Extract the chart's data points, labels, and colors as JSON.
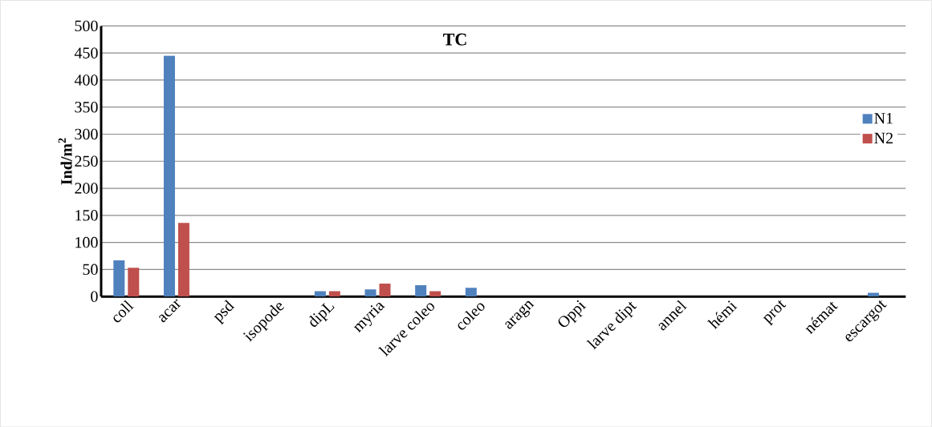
{
  "chart_data": {
    "type": "bar",
    "title": "TC",
    "ylabel": "Ind/m$^{2}$",
    "categories": [
      "coll",
      "acar",
      "psd",
      "isopode",
      "dipL",
      "myria",
      "larve coleo",
      "coleo",
      "aragn",
      "Oppi",
      "larve dipt",
      "annel",
      "hémi",
      "prot",
      "némat",
      "escargot"
    ],
    "series": [
      {
        "name": "N1",
        "color": "#4f81bd",
        "values": [
          67,
          445,
          0,
          0,
          10,
          13,
          21,
          16,
          0,
          0,
          0,
          0,
          0,
          0,
          0,
          7
        ]
      },
      {
        "name": "N2",
        "color": "#c0504d",
        "values": [
          53,
          136,
          0,
          0,
          10,
          24,
          10,
          0,
          0,
          0,
          0,
          0,
          0,
          0,
          0,
          0
        ]
      }
    ],
    "ylim": [
      0,
      500
    ],
    "yticks": [
      0,
      50,
      100,
      150,
      200,
      250,
      300,
      350,
      400,
      450,
      500
    ],
    "grid": "y",
    "legend": "right"
  }
}
